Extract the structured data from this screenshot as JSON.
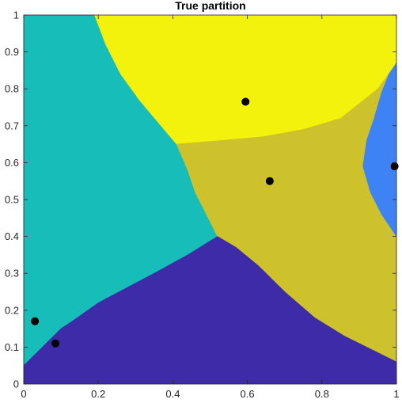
{
  "chart_data": {
    "type": "heatmap",
    "title": "True partition",
    "xlabel": "",
    "ylabel": "",
    "xlim": [
      0,
      1
    ],
    "ylim": [
      0,
      1
    ],
    "x_ticks": [
      0,
      0.2,
      0.4,
      0.6,
      0.8,
      1
    ],
    "x_tick_labels": [
      "0",
      "0.2",
      "0.4",
      "0.6",
      "0.8",
      "1"
    ],
    "y_ticks": [
      0,
      0.1,
      0.2,
      0.3,
      0.4,
      0.5,
      0.6,
      0.7,
      0.8,
      0.9,
      1
    ],
    "y_tick_labels": [
      "0",
      "0.1",
      "0.2",
      "0.3",
      "0.4",
      "0.5",
      "0.6",
      "0.7",
      "0.8",
      "0.9",
      "1"
    ],
    "grid": false,
    "regions": [
      {
        "color": "#17bdb8",
        "boundary": [
          [
            0,
            0.05
          ],
          [
            0,
            1
          ],
          [
            0.19,
            1
          ],
          [
            0.22,
            0.92
          ],
          [
            0.26,
            0.84
          ],
          [
            0.31,
            0.77
          ],
          [
            0.36,
            0.71
          ],
          [
            0.41,
            0.65
          ],
          [
            0.44,
            0.58
          ],
          [
            0.46,
            0.52
          ],
          [
            0.49,
            0.46
          ],
          [
            0.52,
            0.4
          ],
          [
            0.44,
            0.35
          ],
          [
            0.35,
            0.3
          ],
          [
            0.2,
            0.22
          ],
          [
            0.13,
            0.17
          ],
          [
            0.1,
            0.15
          ],
          [
            0.04,
            0.09
          ]
        ]
      },
      {
        "color": "#f2f20d",
        "boundary": [
          [
            0.19,
            1
          ],
          [
            1,
            1
          ],
          [
            1,
            0.87
          ],
          [
            0.95,
            0.8
          ],
          [
            0.85,
            0.72
          ],
          [
            0.75,
            0.69
          ],
          [
            0.64,
            0.67
          ],
          [
            0.53,
            0.66
          ],
          [
            0.41,
            0.65
          ],
          [
            0.36,
            0.71
          ],
          [
            0.31,
            0.77
          ],
          [
            0.26,
            0.84
          ],
          [
            0.22,
            0.92
          ]
        ]
      },
      {
        "color": "#cdc22b",
        "boundary": [
          [
            0.41,
            0.65
          ],
          [
            0.53,
            0.66
          ],
          [
            0.64,
            0.67
          ],
          [
            0.75,
            0.69
          ],
          [
            0.85,
            0.72
          ],
          [
            0.95,
            0.8
          ],
          [
            1,
            0.87
          ],
          [
            0.98,
            0.84
          ],
          [
            0.96,
            0.79
          ],
          [
            0.94,
            0.72
          ],
          [
            0.92,
            0.66
          ],
          [
            0.91,
            0.59
          ],
          [
            0.93,
            0.52
          ],
          [
            0.96,
            0.46
          ],
          [
            1,
            0.4
          ],
          [
            1,
            0.06
          ],
          [
            0.94,
            0.09
          ],
          [
            0.86,
            0.13
          ],
          [
            0.78,
            0.18
          ],
          [
            0.7,
            0.25
          ],
          [
            0.63,
            0.32
          ],
          [
            0.57,
            0.37
          ],
          [
            0.52,
            0.4
          ],
          [
            0.49,
            0.46
          ],
          [
            0.46,
            0.52
          ],
          [
            0.44,
            0.58
          ]
        ]
      },
      {
        "color": "#3e83f6",
        "boundary": [
          [
            1,
            0.87
          ],
          [
            1,
            0.4
          ],
          [
            0.96,
            0.46
          ],
          [
            0.93,
            0.52
          ],
          [
            0.91,
            0.59
          ],
          [
            0.92,
            0.66
          ],
          [
            0.94,
            0.72
          ],
          [
            0.96,
            0.79
          ],
          [
            0.98,
            0.84
          ]
        ]
      },
      {
        "color": "#3d2ba8",
        "boundary": [
          [
            0,
            0
          ],
          [
            1,
            0
          ],
          [
            1,
            0.06
          ],
          [
            0.94,
            0.09
          ],
          [
            0.86,
            0.13
          ],
          [
            0.78,
            0.18
          ],
          [
            0.7,
            0.25
          ],
          [
            0.63,
            0.32
          ],
          [
            0.57,
            0.37
          ],
          [
            0.52,
            0.4
          ],
          [
            0.44,
            0.35
          ],
          [
            0.35,
            0.3
          ],
          [
            0.2,
            0.22
          ],
          [
            0.13,
            0.17
          ],
          [
            0.1,
            0.15
          ],
          [
            0.04,
            0.09
          ],
          [
            0,
            0.05
          ]
        ]
      }
    ],
    "points": [
      {
        "x": 0.03,
        "y": 0.17
      },
      {
        "x": 0.085,
        "y": 0.11
      },
      {
        "x": 0.595,
        "y": 0.765
      },
      {
        "x": 0.66,
        "y": 0.55
      },
      {
        "x": 0.995,
        "y": 0.59
      }
    ],
    "point_color": "#000000"
  }
}
